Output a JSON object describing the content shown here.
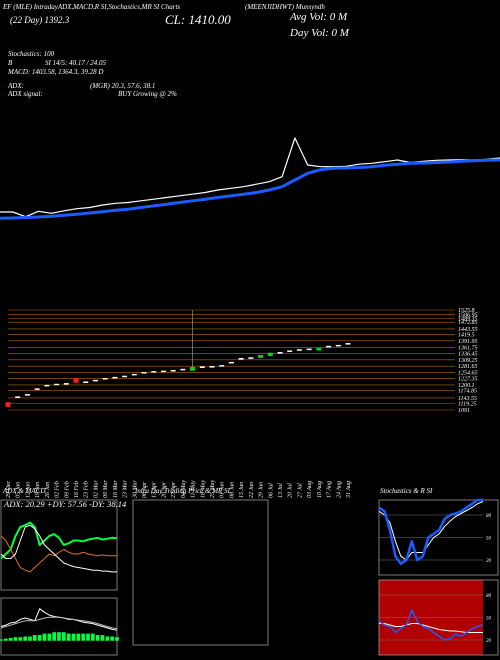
{
  "header": {
    "title": "EF (MLE) IntradayADX,MACD,R SI,Stochastics,MR SI Charts",
    "subtitle": "(MEENJIDHWT) Munsyndh",
    "ema": "(22 Day)   1392.3",
    "close": "CL: 1410.00",
    "avg_vol": "Avg Vol: 0   M",
    "day_vol": "Day Vol: 0   M",
    "stoch": "Stochastics: 100",
    "b": "B",
    "rsi": "SI 14/5: 40.17 / 24.05",
    "macd": "MACD: 1403.58, 1364.3, 39.28  D",
    "adx": "ADX:",
    "adx_vals": "(MGR) 20.3, 57.6, 38.1",
    "adx_signal": "ADX   signal:",
    "signal": "BUY Growing @ 2%"
  },
  "chart_data": [
    {
      "type": "line",
      "ylim": [
        1000,
        1600
      ],
      "series": [
        {
          "color": "#ffffff",
          "values": [
            1108,
            1108,
            1080,
            1112,
            1100,
            1115,
            1128,
            1135,
            1150,
            1160,
            1165,
            1175,
            1185,
            1195,
            1205,
            1215,
            1225,
            1240,
            1250,
            1260,
            1275,
            1290,
            1320,
            1552,
            1390,
            1380,
            1380,
            1382,
            1395,
            1400,
            1410,
            1420,
            1405,
            1412,
            1418,
            1420,
            1422,
            1420,
            1425,
            1432
          ]
        },
        {
          "color": "#1a5cff",
          "values": [
            1070,
            1072,
            1075,
            1078,
            1082,
            1088,
            1095,
            1102,
            1110,
            1118,
            1125,
            1135,
            1145,
            1155,
            1165,
            1175,
            1185,
            1195,
            1205,
            1215,
            1225,
            1240,
            1260,
            1300,
            1340,
            1362,
            1370,
            1372,
            1375,
            1380,
            1388,
            1395,
            1400,
            1402,
            1405,
            1408,
            1412,
            1415,
            1418,
            1420
          ]
        }
      ]
    },
    {
      "type": "candlestick",
      "ylim": [
        1091,
        1525.8
      ],
      "grid": true,
      "grid_color": "#b86a00",
      "up_color": "#00e000",
      "down_color": "#ff2020",
      "flat_color": "#ffffff",
      "yticks": [
        1525.8,
        1506.95,
        1489.35,
        1472.85,
        1443.55,
        1419.5,
        1391.95,
        1361.75,
        1336.45,
        1309.25,
        1281.65,
        1254.65,
        1227.35,
        1200.1,
        1174.85,
        1143.55,
        1119.25,
        1091
      ],
      "categories": [
        "29 Dec",
        "05 Jan",
        "12 Jan",
        "19 Jan",
        "26 Jan",
        "02 Feb",
        "09 Feb",
        "16 Feb",
        "23 Feb",
        "02 Mar",
        "09 Mar",
        "16 Mar",
        "23 Mar",
        "30 Mar",
        "06 Apr",
        "13 Apr",
        "20 Apr",
        "27 Apr",
        "04 May",
        "11 May",
        "18 May",
        "25 May",
        "01 Jun",
        "08 Jun",
        "15 Jun",
        "22 Jun",
        "29 Jun",
        "06 Jul",
        "13 Jul",
        "20 Jul",
        "27 Jul",
        "03 Aug",
        "10 Aug",
        "17 Aug",
        "24 Aug",
        "31 Aug"
      ],
      "open": [
        1125,
        1150,
        1160,
        1185,
        1200,
        1205,
        1208,
        1230,
        1215,
        1222,
        1230,
        1235,
        1240,
        1248,
        1256,
        1260,
        1262,
        1265,
        1270,
        1262,
        1280,
        1282,
        1286,
        1300,
        1317,
        1320,
        1318,
        1326,
        1343,
        1350,
        1355,
        1358,
        1350,
        1370,
        1374,
        1382
      ],
      "close": [
        1105,
        1150,
        1160,
        1185,
        1200,
        1205,
        1208,
        1210,
        1215,
        1222,
        1230,
        1235,
        1240,
        1248,
        1256,
        1260,
        1262,
        1265,
        1270,
        1278,
        1280,
        1282,
        1286,
        1300,
        1317,
        1320,
        1330,
        1340,
        1343,
        1350,
        1355,
        1358,
        1362,
        1370,
        1374,
        1382
      ],
      "high": [
        1125,
        1150,
        1160,
        1185,
        1200,
        1205,
        1208,
        1230,
        1215,
        1222,
        1230,
        1235,
        1240,
        1248,
        1256,
        1260,
        1262,
        1265,
        1270,
        1525,
        1280,
        1282,
        1286,
        1300,
        1317,
        1320,
        1330,
        1340,
        1343,
        1350,
        1355,
        1358,
        1362,
        1370,
        1374,
        1382
      ],
      "low": [
        1105,
        1150,
        1160,
        1185,
        1200,
        1205,
        1208,
        1210,
        1215,
        1222,
        1230,
        1235,
        1240,
        1248,
        1256,
        1260,
        1262,
        1265,
        1270,
        1262,
        1280,
        1282,
        1286,
        1300,
        1317,
        1320,
        1318,
        1326,
        1343,
        1350,
        1355,
        1358,
        1350,
        1370,
        1374,
        1382
      ]
    },
    {
      "type": "line",
      "title": "ADX  & MACD",
      "subtitle": "ADX: 20.29  +DY: 57.56  -DY: 38.14",
      "ylim": [
        0,
        100
      ],
      "series": [
        {
          "color": "#00ff3c",
          "values": [
            35,
            40,
            45,
            60,
            70,
            72,
            75,
            70,
            50,
            55,
            60,
            62,
            58,
            50,
            52,
            55,
            55,
            54,
            56,
            57,
            58,
            56,
            57,
            58,
            57.56
          ]
        },
        {
          "color": "#e07020",
          "values": [
            60,
            55,
            45,
            35,
            25,
            22,
            20,
            25,
            30,
            35,
            40,
            38,
            42,
            45,
            42,
            40,
            40,
            42,
            40,
            39,
            38,
            39,
            38,
            38,
            38.14
          ]
        },
        {
          "color": "#ffffff",
          "values": [
            40,
            35,
            35,
            40,
            55,
            70,
            72,
            68,
            60,
            50,
            45,
            40,
            35,
            30,
            28,
            26,
            25,
            24,
            23,
            22,
            22,
            21,
            21,
            20,
            20.29
          ]
        }
      ]
    },
    {
      "type": "combo",
      "ylim": [
        -20,
        60
      ],
      "color": "#00ff3c",
      "values": [
        2,
        3,
        4,
        5,
        5,
        6,
        6,
        8,
        8,
        10,
        10,
        12,
        12,
        12,
        10,
        10,
        10,
        10,
        10,
        10,
        8,
        8,
        6,
        6,
        5
      ],
      "series": [
        {
          "color": "#ffffff",
          "values": [
            20,
            22,
            25,
            26,
            30,
            32,
            30,
            28,
            45,
            40,
            36,
            34,
            33,
            32,
            30,
            30,
            28,
            26,
            25,
            24,
            22,
            20,
            18,
            16,
            15
          ]
        },
        {
          "color": "#bbbbbb",
          "values": [
            18,
            20,
            22,
            24,
            26,
            28,
            28,
            28,
            30,
            32,
            33,
            33,
            33,
            32,
            31,
            30,
            29,
            28,
            27,
            26,
            24,
            22,
            20,
            18,
            17
          ]
        }
      ]
    },
    {
      "type": "line",
      "title": "Intra  Day  Trading  Price  &  MR                    SI",
      "ylim": [
        0,
        100
      ],
      "series": []
    },
    {
      "type": "line",
      "title": "Stochastics  &  R             SI",
      "ylim": [
        0,
        100
      ],
      "yticks": [
        80,
        50,
        20
      ],
      "grid": true,
      "series": [
        {
          "color": "#ffffff",
          "values": [
            85,
            80,
            70,
            45,
            25,
            20,
            30,
            30,
            30,
            40,
            50,
            55,
            65,
            72,
            78,
            82,
            86,
            90,
            95,
            98
          ]
        },
        {
          "color": "#1a5cff",
          "values": [
            90,
            85,
            60,
            25,
            15,
            20,
            45,
            20,
            25,
            50,
            55,
            60,
            75,
            80,
            82,
            85,
            90,
            95,
            100,
            100
          ]
        }
      ]
    },
    {
      "type": "line",
      "ylim": [
        0,
        100
      ],
      "yticks": [
        80,
        50,
        20
      ],
      "grid": true,
      "background": "#b00000",
      "series": [
        {
          "color": "#ffffff",
          "values": [
            42,
            42,
            40,
            38,
            38,
            40,
            42,
            42,
            40,
            38,
            36,
            34,
            33,
            32,
            32,
            31,
            30,
            30,
            30,
            30
          ]
        },
        {
          "color": "#1a5cff",
          "values": [
            45,
            40,
            38,
            30,
            35,
            40,
            60,
            45,
            38,
            35,
            30,
            25,
            20,
            22,
            28,
            25,
            30,
            35,
            38,
            40.17
          ]
        }
      ]
    }
  ]
}
